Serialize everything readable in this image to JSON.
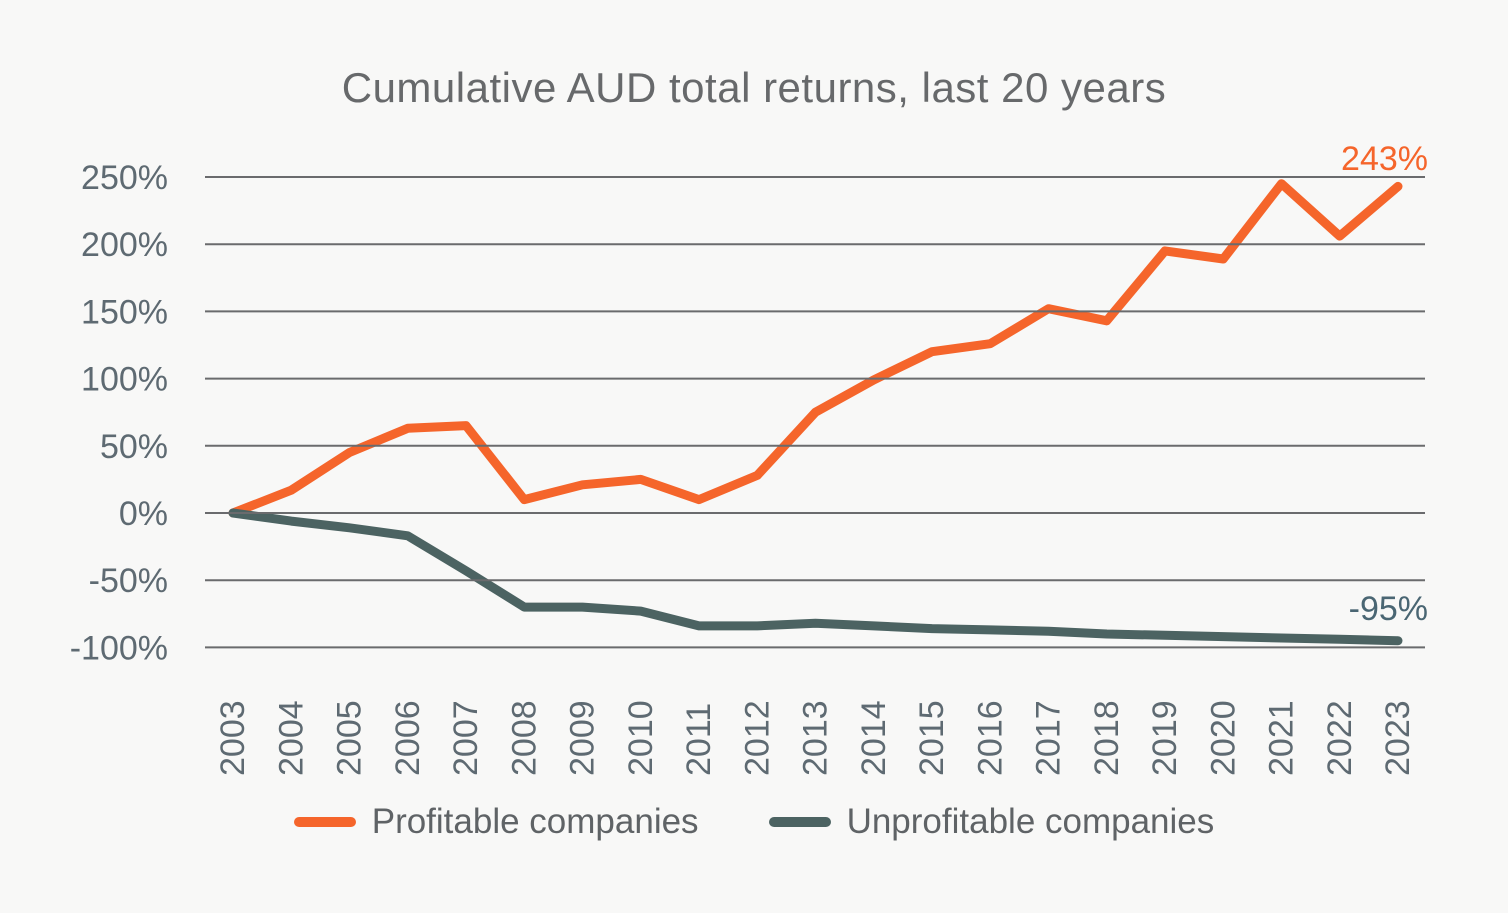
{
  "colors": {
    "background": "#f8f8f7",
    "grid": "#6a6b6d",
    "axis_text": "#5e6a72",
    "title_text": "#67696b",
    "legend_text": "#5f6366"
  },
  "chart_data": {
    "type": "line",
    "title": "Cumulative AUD total returns, last 20 years",
    "xlabel": "",
    "ylabel": "",
    "x": [
      2003,
      2004,
      2005,
      2006,
      2007,
      2008,
      2009,
      2010,
      2011,
      2012,
      2013,
      2014,
      2015,
      2016,
      2017,
      2018,
      2019,
      2020,
      2021,
      2022,
      2023
    ],
    "ylim": [
      -100,
      250
    ],
    "y_ticks": [
      250,
      200,
      150,
      100,
      50,
      0,
      -50,
      -100
    ],
    "y_tick_suffix": "%",
    "grid": "horizontal",
    "legend_position": "bottom",
    "series": [
      {
        "name": "Profitable companies",
        "color": "#f5652b",
        "end_label": "243%",
        "end_label_color": "#f5652b",
        "values": [
          0,
          17,
          45,
          63,
          65,
          10,
          21,
          25,
          10,
          28,
          75,
          99,
          120,
          126,
          152,
          143,
          195,
          189,
          245,
          206,
          243
        ]
      },
      {
        "name": "Unprofitable companies",
        "color": "#4c6362",
        "end_label": "-95%",
        "end_label_color": "#4a6673",
        "values": [
          0,
          -6,
          -11,
          -17,
          -43,
          -70,
          -70,
          -73,
          -84,
          -84,
          -82,
          -84,
          -86,
          -87,
          -88,
          -90,
          -91,
          -92,
          -93,
          -94,
          -95
        ]
      }
    ]
  }
}
